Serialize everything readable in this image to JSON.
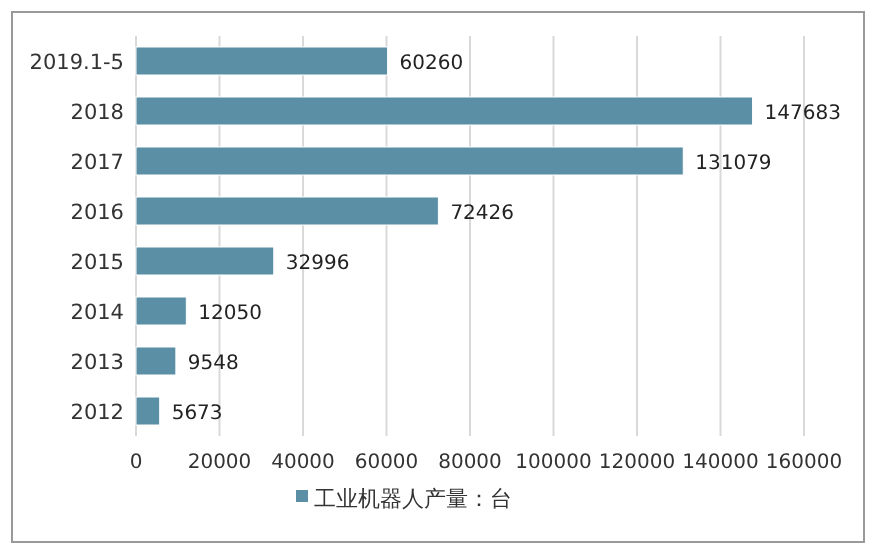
{
  "chart_data": {
    "type": "bar",
    "orientation": "horizontal",
    "categories": [
      "2019.1-5",
      "2018",
      "2017",
      "2016",
      "2015",
      "2014",
      "2013",
      "2012"
    ],
    "series": [
      {
        "name": "工业机器人产量：台",
        "color": "#5b8fa5",
        "values": [
          60260,
          147683,
          131079,
          72426,
          32996,
          12050,
          9548,
          5673
        ]
      }
    ],
    "xlim": [
      0,
      160000
    ],
    "xticks": [
      0,
      20000,
      40000,
      60000,
      80000,
      100000,
      120000,
      140000,
      160000
    ],
    "grid": "x",
    "data_labels": true,
    "legend": "bottom"
  }
}
